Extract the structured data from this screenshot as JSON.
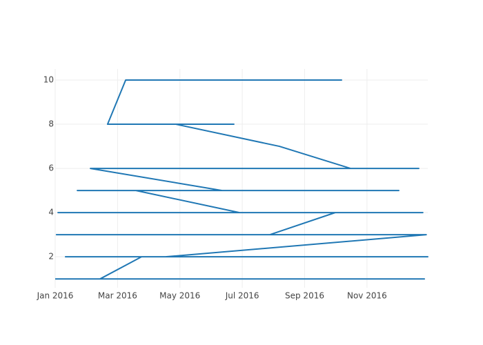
{
  "chart_data": {
    "type": "line",
    "x": [
      9.2,
      2.26,
      1.68,
      5.73,
      3.87,
      7.19,
      9.47,
      11.66,
      1.13,
      5.35,
      11.02,
      0.71,
      2.59,
      5.91,
      0.09,
      11.79,
      8.98,
      6.88,
      0.04,
      11.9,
      3.54,
      11.95,
      0.33,
      2.77,
      1.44,
      11.84,
      0
    ],
    "values": [
      10,
      10,
      8,
      8,
      8,
      7,
      6,
      6,
      6,
      5,
      5,
      5,
      5,
      4,
      4,
      4,
      4,
      3,
      3,
      3,
      2,
      2,
      2,
      2,
      1,
      1,
      1
    ],
    "color": "#1f77b4",
    "xlim": [
      0,
      11.95
    ],
    "xticks": [
      {
        "value": 0,
        "label": "Jan 2016"
      },
      {
        "value": 2,
        "label": "Mar 2016"
      },
      {
        "value": 4,
        "label": "May 2016"
      },
      {
        "value": 6,
        "label": "Jul 2016"
      },
      {
        "value": 8,
        "label": "Sep 2016"
      },
      {
        "value": 10,
        "label": "Nov 2016"
      }
    ],
    "ylim": [
      0.6,
      10.5
    ],
    "yticks": [
      2,
      4,
      6,
      8,
      10
    ],
    "grid": true
  }
}
